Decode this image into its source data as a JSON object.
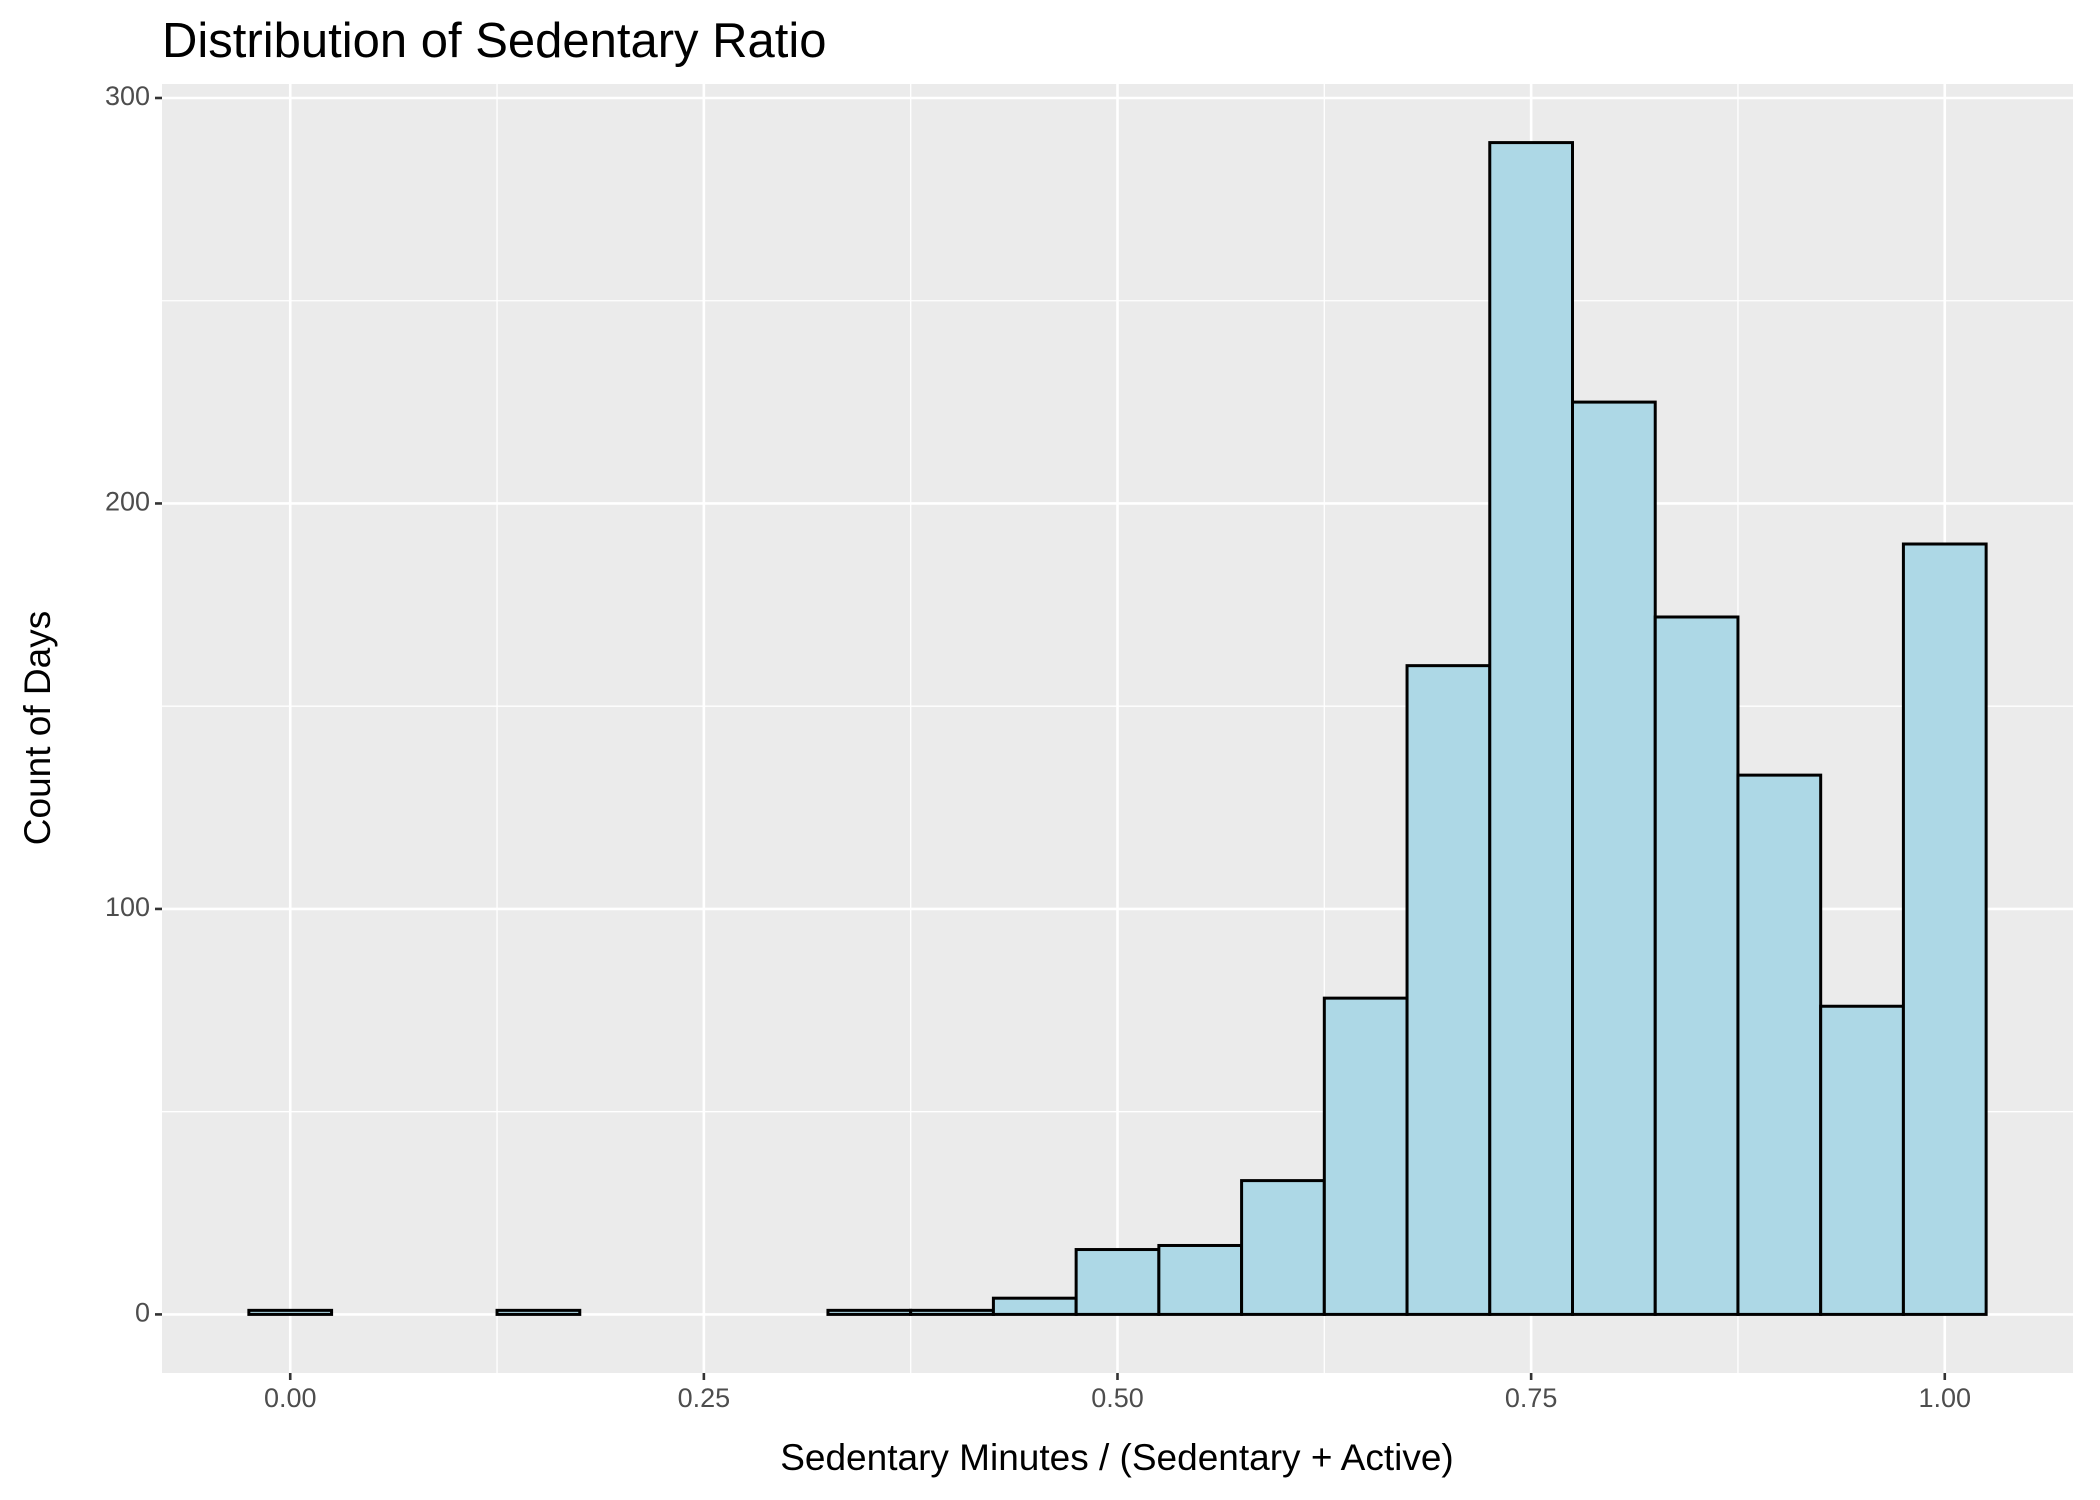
{
  "chart_data": {
    "type": "histogram",
    "title": "Distribution of Sedentary Ratio",
    "x_label": "Sedentary Minutes / (Sedentary + Active)",
    "y_label": "Count of Days",
    "bins": [
      -0.025,
      0.025,
      0.075,
      0.125,
      0.175,
      0.225,
      0.275,
      0.325,
      0.375,
      0.425,
      0.475,
      0.525,
      0.575,
      0.625,
      0.675,
      0.725,
      0.775,
      0.825,
      0.875,
      0.925,
      0.975,
      1.025
    ],
    "counts": [
      1,
      0,
      0,
      1,
      0,
      0,
      0,
      1,
      1,
      4,
      16,
      17,
      33,
      78,
      160,
      289,
      225,
      172,
      133,
      76,
      190
    ],
    "color": "#add8e6",
    "edge_color": "#000000",
    "xlim": [
      -0.0775,
      1.0775
    ],
    "xticks": [
      {
        "value": 0,
        "label": "0.00"
      },
      {
        "value": 0.25,
        "label": "0.25"
      },
      {
        "value": 0.5,
        "label": "0.50"
      },
      {
        "value": 0.75,
        "label": "0.75"
      },
      {
        "value": 1,
        "label": "1.00"
      }
    ],
    "ylim": [
      -14.45,
      303.45
    ],
    "yticks": [
      0,
      100,
      200,
      300
    ],
    "grid": true,
    "minor_grid": true
  }
}
